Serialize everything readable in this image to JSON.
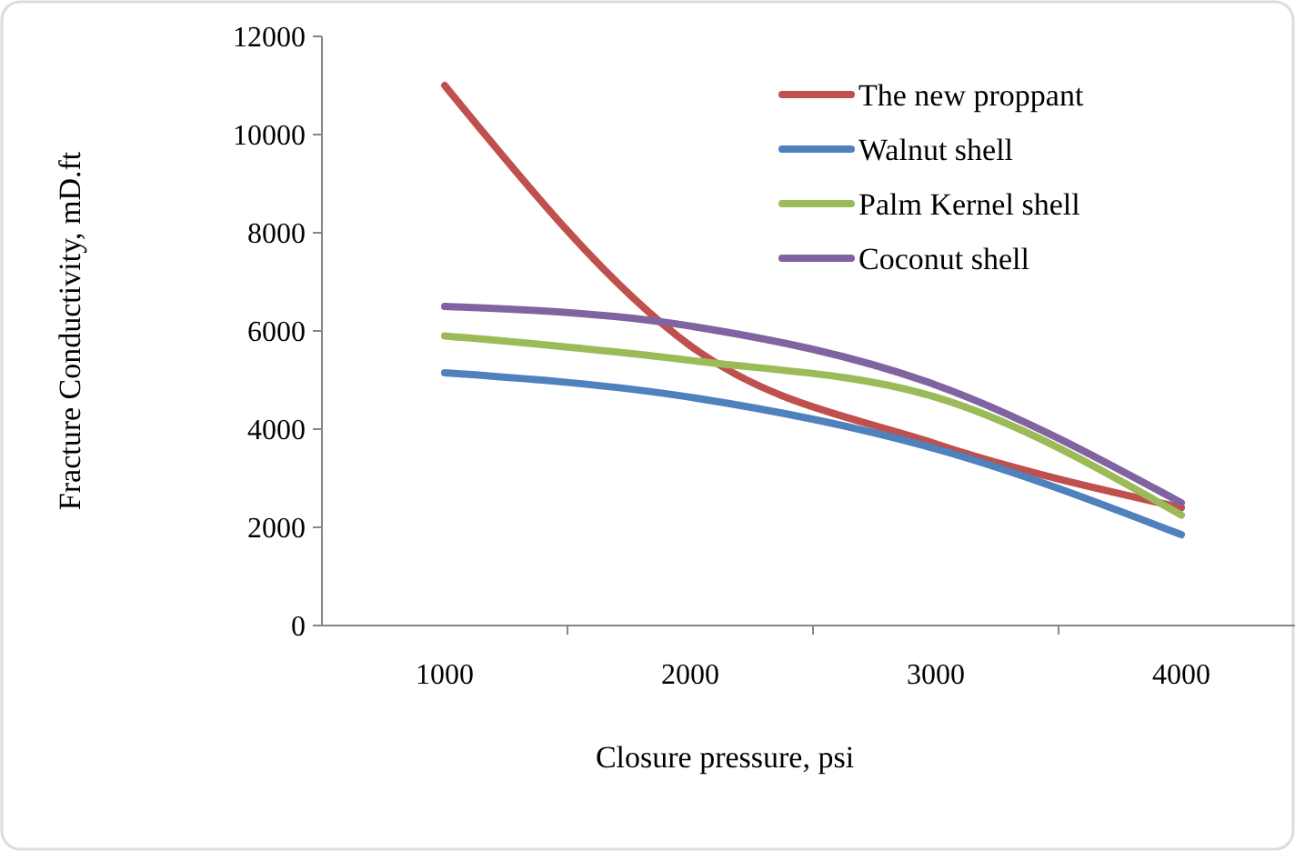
{
  "chart_data": {
    "type": "line",
    "xlabel": "Closure pressure, psi",
    "ylabel": "Fracture Conductivity, mD.ft",
    "categories": [
      "1000",
      "2000",
      "3000",
      "4000"
    ],
    "series": [
      {
        "name": "The new proppant",
        "color": "#c0504d",
        "values": [
          11000,
          5700,
          3700,
          2400
        ]
      },
      {
        "name": "Walnut shell",
        "color": "#4f81bd",
        "values": [
          5150,
          4650,
          3600,
          1850
        ]
      },
      {
        "name": "Palm Kernel shell",
        "color": "#9bbb59",
        "values": [
          5900,
          5400,
          4650,
          2250
        ]
      },
      {
        "name": "Coconut shell",
        "color": "#8064a2",
        "values": [
          6500,
          6100,
          4900,
          2500
        ]
      }
    ],
    "ylim": [
      0,
      12000
    ],
    "yticks": [
      0,
      2000,
      4000,
      6000,
      8000,
      10000,
      12000
    ],
    "grid": false,
    "legend": "top right",
    "marker": "none",
    "line_style": "solid"
  }
}
